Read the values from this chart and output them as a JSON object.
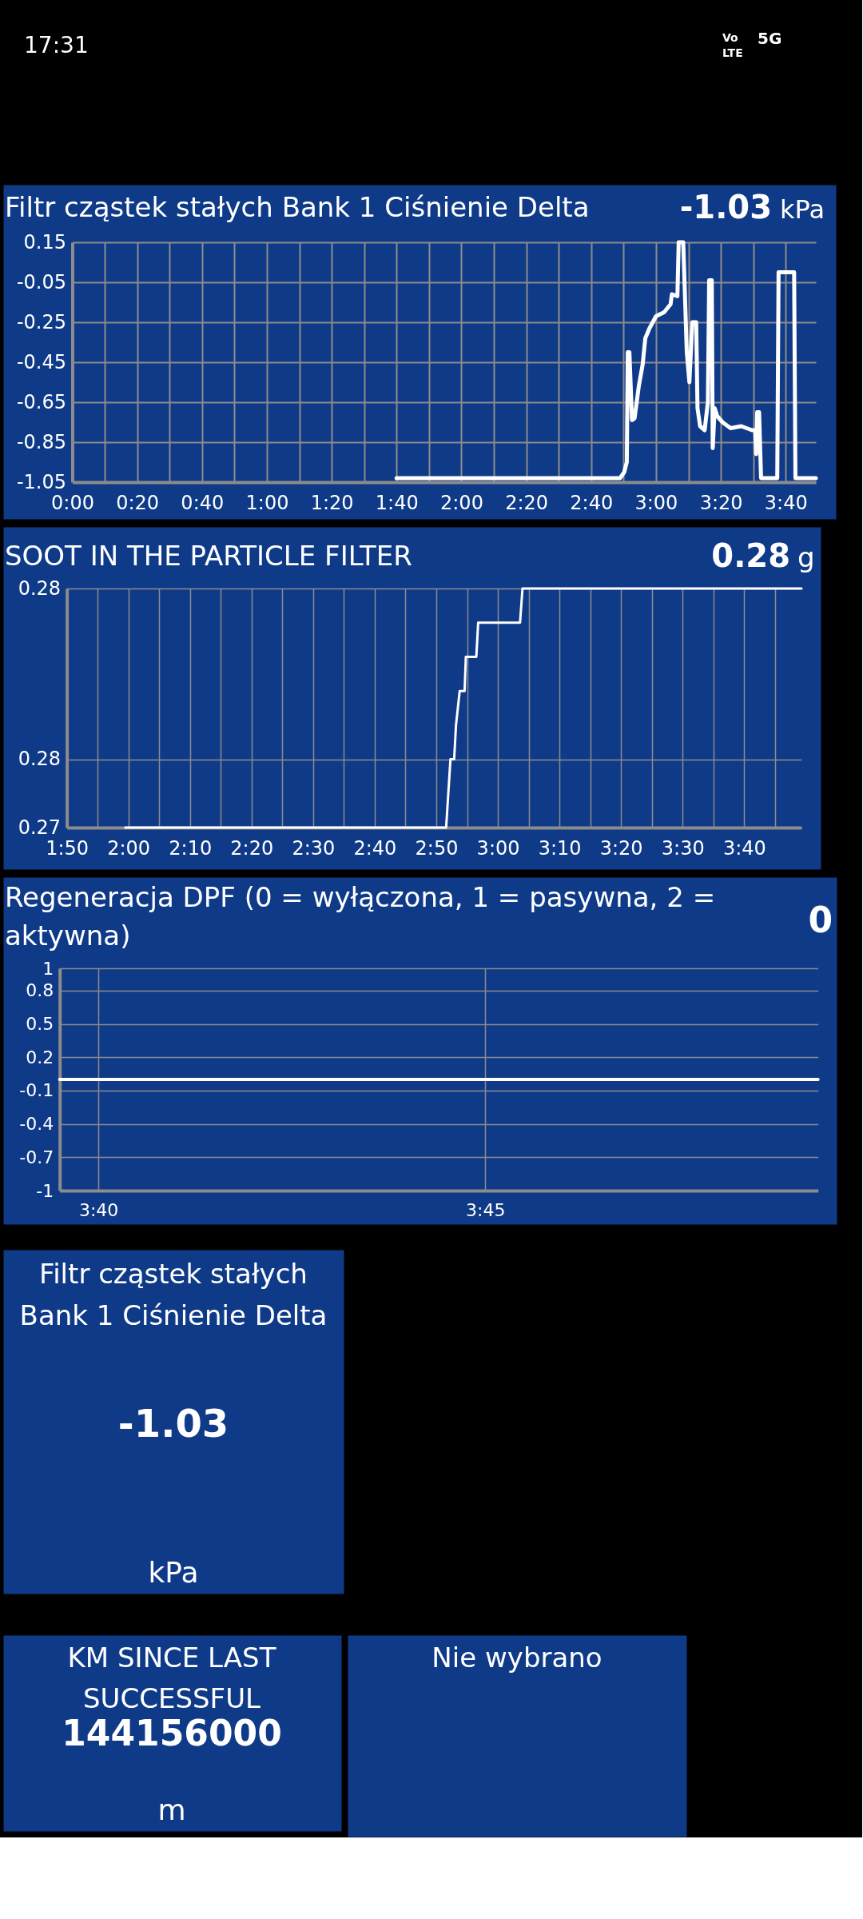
{
  "chart_data": [
    {
      "type": "other",
      "annotations": [
        "17:31",
        "Vo",
        "LTE",
        "5G"
      ]
    },
    {
      "type": "line",
      "title": "Filtr cząstek stałych Bank 1 Ciśnienie Delta",
      "annotations": [
        "-1.03",
        "kPa"
      ],
      "series": [
        {
          "color": "#ffffff",
          "x": [
            100,
            168.9,
            170.2,
            171,
            171.3,
            171.8,
            172.6,
            173.4,
            174.7,
            175.9,
            176.7,
            178,
            180,
            182.5,
            184.5,
            184.9,
            186.6,
            187,
            188.4,
            189.5,
            190.3,
            191.2,
            192.4,
            192.8,
            193.6,
            195,
            196,
            196.4,
            197.2,
            197.5,
            198.1,
            198.9,
            200.5,
            203,
            206.3,
            209.6,
            210.6,
            210.9,
            211.2,
            211.8,
            212.4,
            217.4,
            217.8,
            222.6,
            223,
            229.3
          ],
          "values": [
            -1.03,
            -1.03,
            -1.0,
            -0.95,
            -0.4,
            -0.4,
            -0.74,
            -0.73,
            -0.57,
            -0.46,
            -0.33,
            -0.28,
            -0.22,
            -0.2,
            -0.16,
            -0.11,
            -0.12,
            0.15,
            0.15,
            -0.4,
            -0.55,
            -0.25,
            -0.25,
            -0.68,
            -0.77,
            -0.79,
            -0.65,
            -0.04,
            -0.04,
            -0.88,
            -0.68,
            -0.72,
            -0.75,
            -0.78,
            -0.77,
            -0.79,
            -0.79,
            -0.91,
            -0.7,
            -0.7,
            -1.03,
            -1.03,
            0.0,
            0.0,
            -1.03,
            -1.03
          ]
        }
      ],
      "xlim": [
        0,
        229.3
      ],
      "xticks": [
        {
          "value": 0,
          "label": "0:00"
        },
        {
          "value": 10,
          "label": null
        },
        {
          "value": 20,
          "label": "0:20"
        },
        {
          "value": 30,
          "label": null
        },
        {
          "value": 40,
          "label": "0:40"
        },
        {
          "value": 50,
          "label": null
        },
        {
          "value": 60,
          "label": "1:00"
        },
        {
          "value": 70,
          "label": null
        },
        {
          "value": 80,
          "label": "1:20"
        },
        {
          "value": 90,
          "label": null
        },
        {
          "value": 100,
          "label": "1:40"
        },
        {
          "value": 110,
          "label": null
        },
        {
          "value": 120,
          "label": "2:00"
        },
        {
          "value": 130,
          "label": null
        },
        {
          "value": 140,
          "label": "2:20"
        },
        {
          "value": 150,
          "label": null
        },
        {
          "value": 160,
          "label": "2:40"
        },
        {
          "value": 170,
          "label": null
        },
        {
          "value": 180,
          "label": "3:00"
        },
        {
          "value": 190,
          "label": null
        },
        {
          "value": 200,
          "label": "3:20"
        },
        {
          "value": 210,
          "label": null
        },
        {
          "value": 220,
          "label": "3:40"
        }
      ],
      "ylim": [
        -1.05,
        0.15
      ],
      "yticks": [
        0.15,
        -0.05,
        -0.25,
        -0.45,
        -0.65,
        -0.85,
        -1.05
      ],
      "grid": true
    },
    {
      "type": "line",
      "title": "SOOT IN THE PARTICLE FILTER",
      "annotations": [
        "0.28",
        "g"
      ],
      "series": [
        {
          "color": "#ffffff",
          "x": [
            119.5,
            171.6,
            172.3,
            172.9,
            173.2,
            173.8,
            174.6,
            174.8,
            176.5,
            176.8,
            183.6,
            184,
            229.3
          ],
          "values": [
            0.274,
            0.274,
            0.275,
            0.275,
            0.2755,
            0.276,
            0.276,
            0.2765,
            0.2765,
            0.277,
            0.277,
            0.2775,
            0.2775
          ]
        }
      ],
      "xlim": [
        110,
        229.3
      ],
      "xticks": [
        {
          "value": 110,
          "label": "1:50"
        },
        {
          "value": 115,
          "label": null
        },
        {
          "value": 120,
          "label": "2:00"
        },
        {
          "value": 125,
          "label": null
        },
        {
          "value": 130,
          "label": "2:10"
        },
        {
          "value": 135,
          "label": null
        },
        {
          "value": 140,
          "label": "2:20"
        },
        {
          "value": 145,
          "label": null
        },
        {
          "value": 150,
          "label": "2:30"
        },
        {
          "value": 155,
          "label": null
        },
        {
          "value": 160,
          "label": "2:40"
        },
        {
          "value": 165,
          "label": null
        },
        {
          "value": 170,
          "label": "2:50"
        },
        {
          "value": 175,
          "label": null
        },
        {
          "value": 180,
          "label": "3:00"
        },
        {
          "value": 185,
          "label": null
        },
        {
          "value": 190,
          "label": "3:10"
        },
        {
          "value": 195,
          "label": null
        },
        {
          "value": 200,
          "label": "3:20"
        },
        {
          "value": 205,
          "label": null
        },
        {
          "value": 210,
          "label": "3:30"
        },
        {
          "value": 215,
          "label": null
        },
        {
          "value": 220,
          "label": "3:40"
        },
        {
          "value": 225,
          "label": null
        }
      ],
      "ylim": [
        0.274,
        0.2775
      ],
      "yticks": [
        {
          "value": 0.2775,
          "label": "0.28"
        },
        {
          "value": 0.275,
          "label": "0.28"
        },
        {
          "value": 0.274,
          "label": "0.27"
        }
      ],
      "grid": true
    },
    {
      "type": "line",
      "title": "Regeneracja DPF (0 = wyłączona, 1 = pasywna, 2 = aktywna)",
      "annotations": [
        "0"
      ],
      "series": [
        {
          "color": "#ffffff",
          "x": [
            219.5,
            229.3
          ],
          "values": [
            0,
            0
          ]
        }
      ],
      "xlim": [
        219.5,
        229.3
      ],
      "xticks": [
        {
          "value": 220,
          "label": "3:40"
        },
        {
          "value": 225,
          "label": "3:45"
        }
      ],
      "ylim": [
        -1,
        1
      ],
      "yticks": [
        1,
        0.8,
        0.5,
        0.2,
        -0.1,
        -0.4,
        -0.7,
        -1
      ],
      "grid": true
    },
    {
      "type": "other",
      "title": "Filtr cząstek stałych Bank 1 Ciśnienie Delta",
      "annotations": [
        "-1.03",
        "kPa"
      ]
    },
    {
      "type": "other",
      "title": "KM SINCE LAST SUCCESSFUL",
      "annotations": [
        "144156000",
        "m"
      ]
    },
    {
      "type": "other",
      "title": "Nie wybrano"
    }
  ]
}
